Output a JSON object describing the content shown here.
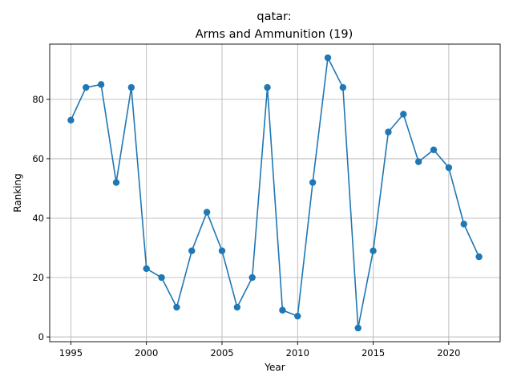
{
  "chart_data": {
    "type": "line",
    "title_line1": "qatar:",
    "title_line2": "Arms and Ammunition (19)",
    "xlabel": "Year",
    "ylabel": "Ranking",
    "xlim": [
      1993.6,
      2023.4
    ],
    "ylim": [
      -1.6,
      98.6
    ],
    "xticks": [
      1995,
      2000,
      2005,
      2010,
      2015,
      2020
    ],
    "yticks": [
      0,
      20,
      40,
      60,
      80
    ],
    "grid": true,
    "color": "#1f77b4",
    "x": [
      1995,
      1996,
      1997,
      1998,
      1999,
      2000,
      2001,
      2002,
      2003,
      2004,
      2005,
      2006,
      2007,
      2008,
      2009,
      2010,
      2011,
      2012,
      2013,
      2014,
      2015,
      2016,
      2017,
      2018,
      2019,
      2020,
      2021,
      2022
    ],
    "y": [
      73,
      84,
      85,
      52,
      84,
      23,
      20,
      10,
      29,
      42,
      29,
      10,
      20,
      84,
      9,
      7,
      52,
      94,
      84,
      3,
      29,
      69,
      75,
      59,
      63,
      57,
      38,
      27
    ]
  }
}
